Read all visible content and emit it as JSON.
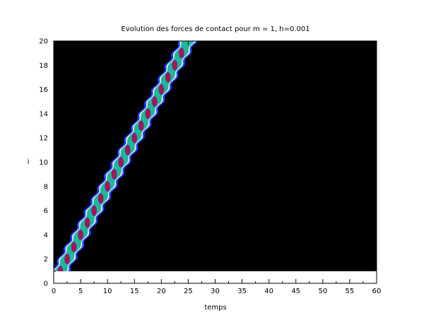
{
  "chart_data": {
    "type": "heatmap",
    "title": "Evolution des forces de contact pour m = 1, h=0.001",
    "xlabel": "temps",
    "ylabel": "i",
    "xlim": [
      0,
      60
    ],
    "ylim": [
      0,
      20
    ],
    "x_ticks": [
      "0",
      "5",
      "10",
      "15",
      "20",
      "25",
      "30",
      "35",
      "40",
      "45",
      "50",
      "55",
      "60"
    ],
    "y_ticks": [
      "0",
      "2",
      "4",
      "6",
      "8",
      "10",
      "12",
      "14",
      "16",
      "18",
      "20"
    ],
    "data_extent": {
      "x": [
        0,
        60
      ],
      "y": [
        1,
        20
      ]
    },
    "background_color": "#000000",
    "band": {
      "description_values": "propagating contact force wave: ridge center t = 1.25*i",
      "slope_time_per_index": 1.25,
      "half_width_outer_time": 1.6,
      "half_width_teal_time": 1.0,
      "peak_half_width_time": 0.35
    },
    "peaks": [
      {
        "i": 1,
        "t": 1.25
      },
      {
        "i": 2,
        "t": 2.5
      },
      {
        "i": 3,
        "t": 3.75
      },
      {
        "i": 4,
        "t": 5.0
      },
      {
        "i": 5,
        "t": 6.25
      },
      {
        "i": 6,
        "t": 7.5
      },
      {
        "i": 7,
        "t": 8.75
      },
      {
        "i": 8,
        "t": 10.0
      },
      {
        "i": 9,
        "t": 11.25
      },
      {
        "i": 10,
        "t": 12.5
      },
      {
        "i": 11,
        "t": 13.75
      },
      {
        "i": 12,
        "t": 15.0
      },
      {
        "i": 13,
        "t": 16.25
      },
      {
        "i": 14,
        "t": 17.5
      },
      {
        "i": 15,
        "t": 18.75
      },
      {
        "i": 16,
        "t": 20.0
      },
      {
        "i": 17,
        "t": 21.25
      },
      {
        "i": 18,
        "t": 22.5
      },
      {
        "i": 19,
        "t": 23.75
      }
    ],
    "colors": {
      "outer_blue": "#1a3cff",
      "white_edge": "#e8e8e8",
      "teal": "#1fb79a",
      "peak": "#b3104f",
      "peak_ring": "#6a2a8a"
    }
  }
}
